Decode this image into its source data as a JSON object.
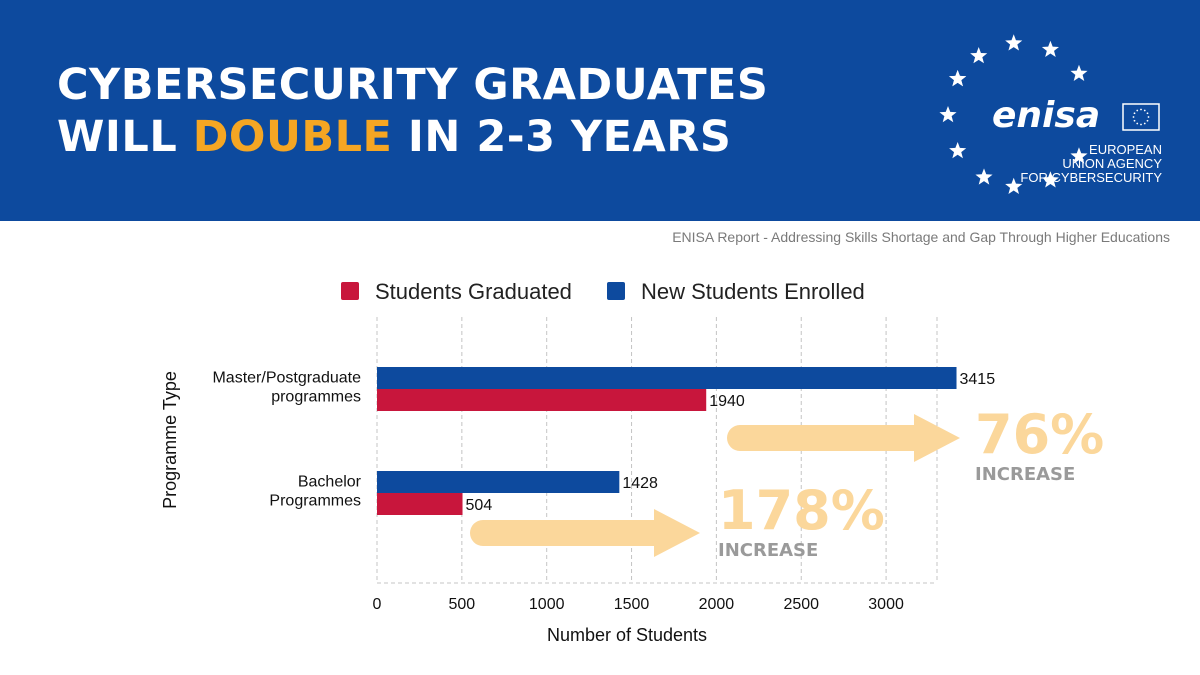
{
  "banner": {
    "headline_line1": "CYBERSECURITY GRADUATES",
    "headline_line2_prefix": "WILL ",
    "headline_line2_accent": "DOUBLE",
    "headline_line2_suffix": " IN 2-3 YEARS",
    "accent_color": "#f5a623",
    "background_color": "#0d4a9e",
    "logo_text": "enisa",
    "agency_line1": "EUROPEAN",
    "agency_line2": "UNION AGENCY",
    "agency_line3": "FOR CYBERSECURITY"
  },
  "source_note": "ENISA Report - Addressing Skills Shortage and Gap Through Higher Educations",
  "chart_data": {
    "type": "bar",
    "orientation": "horizontal",
    "categories": [
      "Master/Postgraduate programmes",
      "Bachelor Programmes"
    ],
    "category_lines": [
      [
        "Master/Postgraduate",
        "programmes"
      ],
      [
        "Bachelor",
        "Programmes"
      ]
    ],
    "series": [
      {
        "name": "New Students Enrolled",
        "color": "#0d4a9e",
        "values": [
          3415,
          1428
        ]
      },
      {
        "name": "Students Graduated",
        "color": "#c8163c",
        "values": [
          1940,
          504
        ]
      }
    ],
    "legend": [
      {
        "label": "Students Graduated",
        "color": "#c8163c"
      },
      {
        "label": "New Students Enrolled",
        "color": "#0d4a9e"
      }
    ],
    "legend_position": "top",
    "xlabel": "Number of Students",
    "ylabel": "Programme Type",
    "xlim": [
      0,
      3300
    ],
    "xticks": [
      0,
      500,
      1000,
      1500,
      2000,
      2500,
      3000
    ],
    "grid": "vertical dashed",
    "annotations": [
      {
        "percent": "76%",
        "label": "INCREASE",
        "category": "Master/Postgraduate programmes"
      },
      {
        "percent": "178%",
        "label": "INCREASE",
        "category": "Bachelor Programmes"
      }
    ],
    "annotation_color": "#fbd79b",
    "annotation_label_color": "#9a9a9a"
  }
}
